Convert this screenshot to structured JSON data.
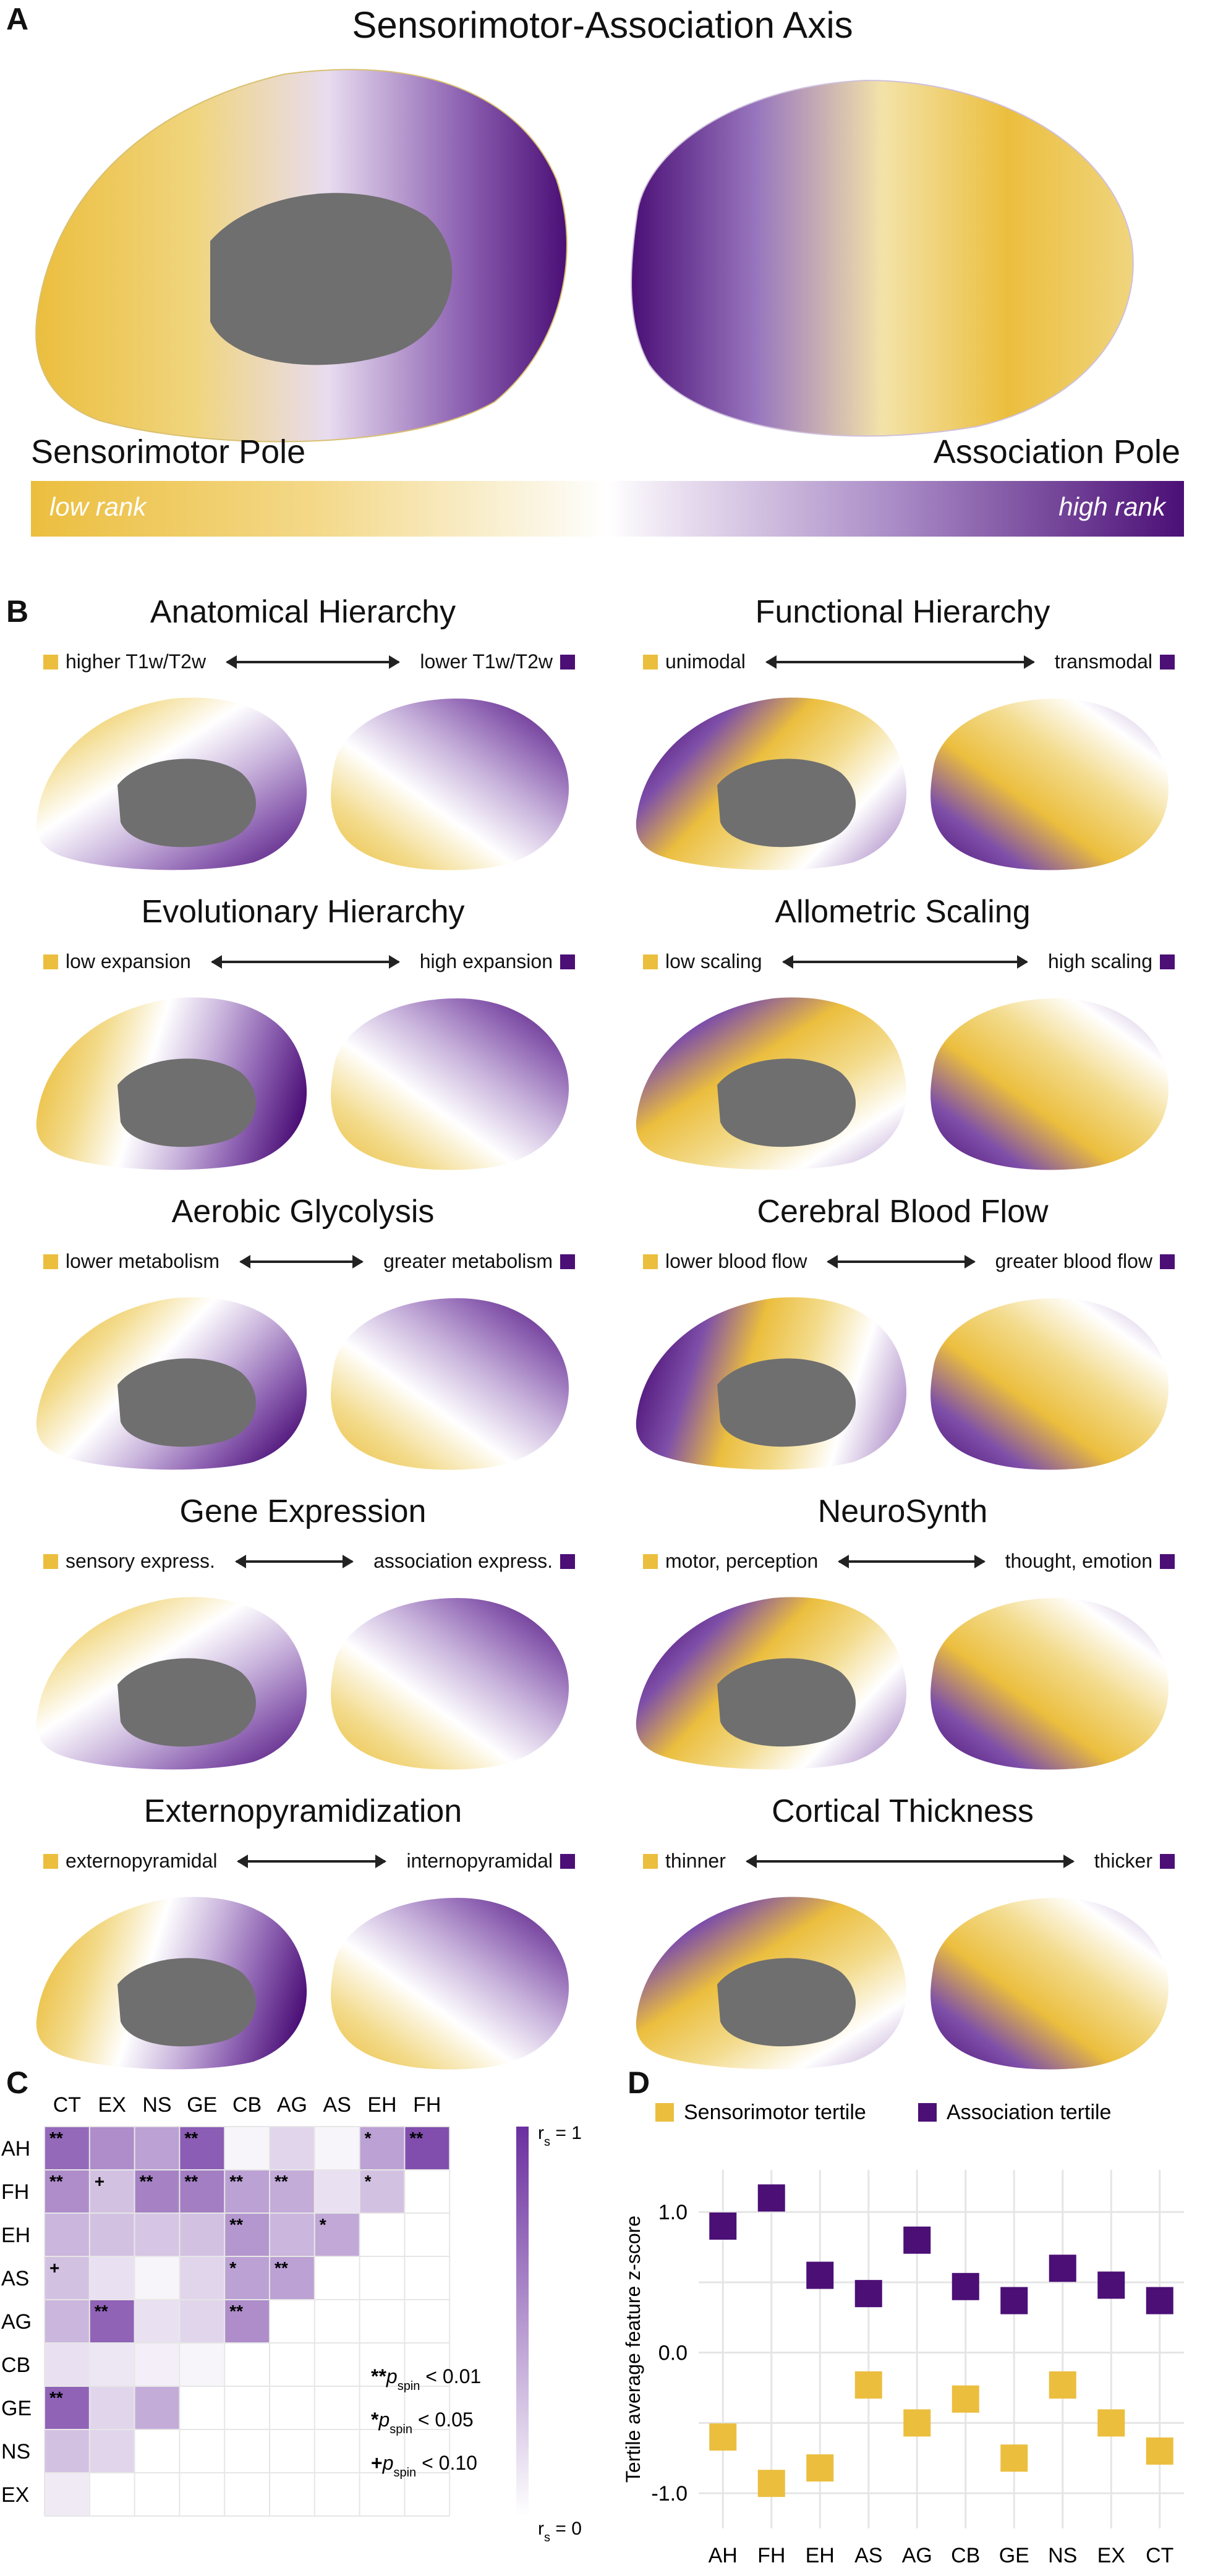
{
  "panelA": {
    "letter": "A",
    "title": "Sensorimotor-Association Axis",
    "left_pole": "Sensorimotor Pole",
    "right_pole": "Association Pole",
    "low_label": "low rank",
    "high_label": "high rank"
  },
  "panelB": {
    "letter": "B",
    "maps": [
      {
        "title": "Anatomical Hierarchy",
        "low": "higher T1w/T2w",
        "high": "lower T1w/T2w"
      },
      {
        "title": "Functional Hierarchy",
        "low": "unimodal",
        "high": "transmodal"
      },
      {
        "title": "Evolutionary Hierarchy",
        "low": "low expansion",
        "high": "high expansion"
      },
      {
        "title": "Allometric Scaling",
        "low": "low scaling",
        "high": "high scaling"
      },
      {
        "title": "Aerobic Glycolysis",
        "low": "lower metabolism",
        "high": "greater metabolism"
      },
      {
        "title": "Cerebral Blood Flow",
        "low": "lower blood flow",
        "high": "greater blood flow"
      },
      {
        "title": "Gene Expression",
        "low": "sensory express.",
        "high": "association express."
      },
      {
        "title": "NeuroSynth",
        "low": "motor, perception",
        "high": "thought, emotion"
      },
      {
        "title": "Externopyramidization",
        "low": "externopyramidal",
        "high": "internopyramidal"
      },
      {
        "title": "Cortical Thickness",
        "low": "thinner",
        "high": "thicker"
      }
    ]
  },
  "panelC": {
    "letter": "C",
    "columns": [
      "CT",
      "EX",
      "NS",
      "GE",
      "CB",
      "AG",
      "AS",
      "EH",
      "FH"
    ],
    "rows": [
      "AH",
      "FH",
      "EH",
      "AS",
      "AG",
      "CB",
      "GE",
      "NS",
      "EX"
    ],
    "values": [
      [
        0.72,
        0.55,
        0.45,
        0.78,
        0.05,
        0.2,
        0.05,
        0.45,
        0.85
      ],
      [
        0.55,
        0.3,
        0.6,
        0.62,
        0.45,
        0.4,
        0.15,
        0.3
      ],
      [
        0.35,
        0.3,
        0.28,
        0.3,
        0.5,
        0.35,
        0.42
      ],
      [
        0.3,
        0.15,
        0.05,
        0.2,
        0.45,
        0.45
      ],
      [
        0.35,
        0.75,
        0.15,
        0.2,
        0.55
      ],
      [
        0.15,
        0.12,
        0.08,
        0.05
      ],
      [
        0.75,
        0.2,
        0.4
      ],
      [
        0.3,
        0.2
      ],
      [
        0.1
      ]
    ],
    "stars": [
      [
        "**",
        "",
        "",
        "**",
        "",
        "",
        "",
        "*",
        "**"
      ],
      [
        "**",
        "+",
        "**",
        "**",
        "**",
        "**",
        "",
        "*"
      ],
      [
        "",
        "",
        "",
        "",
        "**",
        "",
        "*"
      ],
      [
        "+",
        "",
        "",
        "",
        "*",
        "**"
      ],
      [
        "",
        "**",
        "",
        "",
        "**"
      ],
      [
        "",
        "",
        "",
        ""
      ],
      [
        "**",
        "",
        ""
      ],
      [
        "",
        ""
      ],
      [
        ""
      ]
    ],
    "colorbar_top": "r",
    "colorbar_top_sub": "s",
    "colorbar_top_val": " = 1",
    "colorbar_bottom_val": " = 0",
    "sig": [
      {
        "mark": "**",
        "sub": "spin",
        "text": " < 0.01"
      },
      {
        "mark": "*",
        "sub": "spin",
        "text": " < 0.05"
      },
      {
        "mark": "+",
        "sub": "spin",
        "text": " < 0.10"
      }
    ],
    "p_letter": "p"
  },
  "chart_data": {
    "type": "scatter",
    "letter": "D",
    "categories": [
      "AH",
      "FH",
      "EH",
      "AS",
      "AG",
      "CB",
      "GE",
      "NS",
      "EX",
      "CT"
    ],
    "series": [
      {
        "name": "Sensorimotor tertile",
        "color": "#EBBE3E",
        "values": [
          -0.6,
          -0.93,
          -0.82,
          -0.23,
          -0.5,
          -0.33,
          -0.75,
          -0.23,
          -0.5,
          -0.7
        ]
      },
      {
        "name": "Association tertile",
        "color": "#4B0F76",
        "values": [
          0.9,
          1.1,
          0.55,
          0.42,
          0.8,
          0.47,
          0.37,
          0.6,
          0.48,
          0.37
        ]
      }
    ],
    "ylabel": "Tertile average feature z-score",
    "yticks": [
      "1.0",
      "0.0",
      "-1.0"
    ],
    "ylim": [
      -1.25,
      1.3
    ]
  }
}
